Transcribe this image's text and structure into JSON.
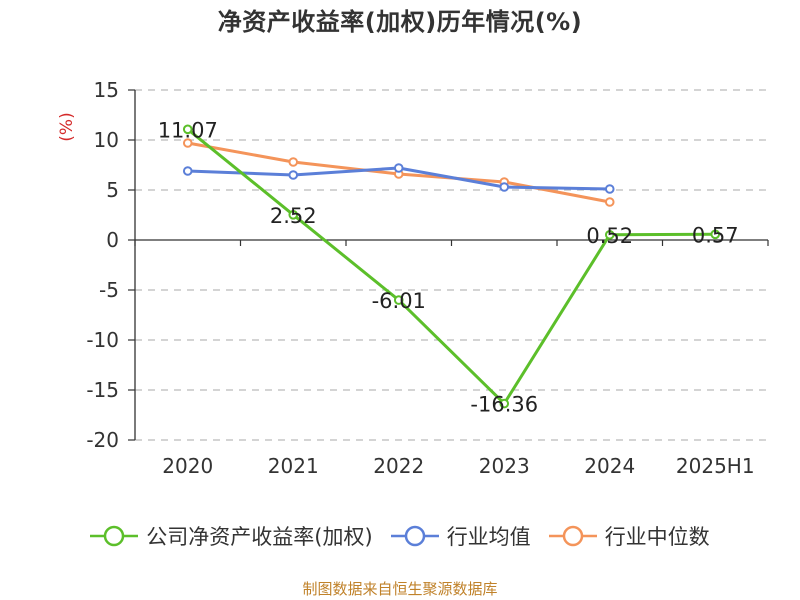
{
  "title": "净资产收益率(加权)历年情况(%)",
  "source": "制图数据来自恒生聚源数据库",
  "colors": {
    "company": "#5cbf2a",
    "industry_avg": "#5b7fd8",
    "industry_median": "#f4945a",
    "unit_label": "#d42a2a",
    "grid": "#bbbbbb",
    "axis": "#333333",
    "text": "#333333"
  },
  "chart_data": {
    "type": "line",
    "title": "净资产收益率(加权)历年情况(%)",
    "ylabel": "(%)",
    "xlabel": "",
    "categories": [
      "2020",
      "2021",
      "2022",
      "2023",
      "2024",
      "2025H1"
    ],
    "ylim": [
      -20,
      15
    ],
    "yticks": [
      15,
      10,
      5,
      0,
      -5,
      -10,
      -15,
      -20
    ],
    "grid": true,
    "legend_position": "bottom",
    "series": [
      {
        "name": "公司净资产收益率(加权)",
        "values": [
          11.07,
          2.52,
          -6.01,
          -16.36,
          0.52,
          0.57
        ],
        "labels": [
          "11.07",
          "2.52",
          "-6.01",
          "-16.36",
          "0.52",
          "0.57"
        ],
        "color_key": "company"
      },
      {
        "name": "行业均值",
        "values": [
          6.9,
          6.5,
          7.2,
          5.3,
          5.1,
          null
        ],
        "color_key": "industry_avg"
      },
      {
        "name": "行业中位数",
        "values": [
          9.7,
          7.8,
          6.6,
          5.8,
          3.8,
          null
        ],
        "color_key": "industry_median"
      }
    ]
  }
}
